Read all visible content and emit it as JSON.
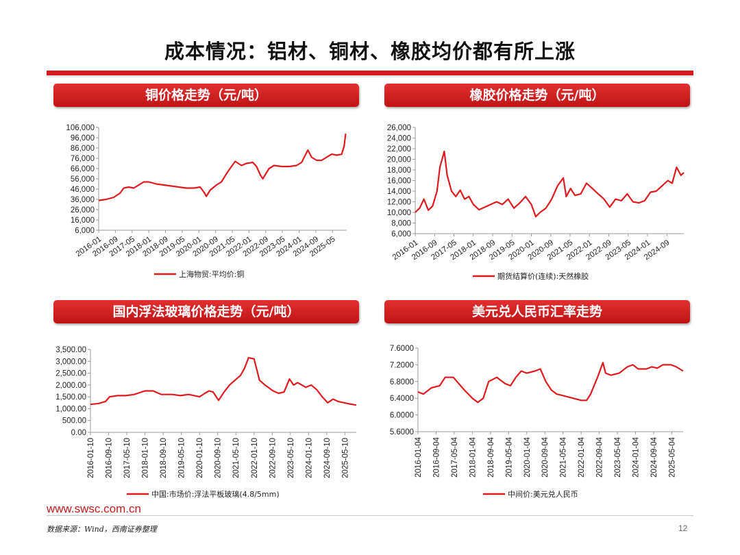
{
  "page": {
    "title": "成本情况：铝材、铜材、橡胶均价都有所上涨",
    "url": "www.swsc.com.cn",
    "source": "数据来源：Wind，西南证券整理",
    "page_number": "12"
  },
  "panels": [
    {
      "header": "铜价格走势（元/吨）"
    },
    {
      "header": "橡胶价格走势（元/吨）"
    },
    {
      "header": "国内浮法玻璃价格走势（元/吨）"
    },
    {
      "header": "美元兑人民币汇率走势"
    }
  ],
  "colors": {
    "accent": "#d41a1a",
    "line": "#e0191f"
  },
  "chart_data": [
    {
      "type": "line",
      "title": "铜价格走势（元/吨）",
      "legend": "上海物贸:平均价:铜",
      "ylim": [
        6000,
        106000
      ],
      "yticks": [
        "106,000",
        "96,000",
        "86,000",
        "76,000",
        "66,000",
        "56,000",
        "46,000",
        "36,000",
        "26,000",
        "16,000",
        "6,000"
      ],
      "ytick_values": [
        106000,
        96000,
        86000,
        76000,
        66000,
        56000,
        46000,
        36000,
        26000,
        16000,
        6000
      ],
      "xlim": [
        2016.0,
        2025.9
      ],
      "xticks": [
        "2016-01",
        "2016-09",
        "2017-05",
        "2018-01",
        "2018-09",
        "2019-05",
        "2020-01",
        "2020-09",
        "2021-05",
        "2022-01",
        "2022-09",
        "2023-05",
        "2024-01",
        "2024-09",
        "2025-05"
      ],
      "xtick_values": [
        2016.0,
        2016.667,
        2017.333,
        2018.0,
        2018.667,
        2019.333,
        2020.0,
        2020.667,
        2021.333,
        2022.0,
        2022.667,
        2023.333,
        2024.0,
        2024.667,
        2025.333
      ],
      "x": [
        2016.0,
        2016.3,
        2016.6,
        2016.85,
        2017.0,
        2017.2,
        2017.4,
        2017.6,
        2017.8,
        2018.0,
        2018.3,
        2018.6,
        2018.9,
        2019.2,
        2019.5,
        2019.8,
        2020.05,
        2020.2,
        2020.3,
        2020.45,
        2020.7,
        2020.9,
        2021.1,
        2021.3,
        2021.45,
        2021.7,
        2021.9,
        2022.15,
        2022.3,
        2022.45,
        2022.55,
        2022.8,
        2023.0,
        2023.3,
        2023.6,
        2023.9,
        2024.1,
        2024.35,
        2024.5,
        2024.7,
        2024.9,
        2025.1,
        2025.3,
        2025.5,
        2025.7,
        2025.8,
        2025.86
      ],
      "values": [
        35000,
        36000,
        38000,
        42000,
        47000,
        48000,
        47000,
        50000,
        53000,
        53000,
        51000,
        50000,
        49000,
        48000,
        47000,
        47000,
        48000,
        43000,
        39000,
        45000,
        50000,
        53000,
        61000,
        68000,
        73000,
        69000,
        71000,
        72000,
        68000,
        60000,
        56000,
        66000,
        69000,
        68000,
        68000,
        69000,
        72000,
        84000,
        77000,
        74000,
        74000,
        77000,
        80000,
        79000,
        80000,
        88000,
        100000
      ]
    },
    {
      "type": "line",
      "title": "橡胶价格走势（元/吨）",
      "legend": "期货结算价(连续):天然橡胶",
      "ylim": [
        6000,
        26000
      ],
      "yticks": [
        "26,000",
        "24,000",
        "22,000",
        "20,000",
        "18,000",
        "16,000",
        "14,000",
        "12,000",
        "10,000",
        "8,000",
        "6,000"
      ],
      "ytick_values": [
        26000,
        24000,
        22000,
        20000,
        18000,
        16000,
        14000,
        12000,
        10000,
        8000,
        6000
      ],
      "xlim": [
        2016.0,
        2025.25
      ],
      "xticks": [
        "2016-01",
        "2016-09",
        "2017-05",
        "2018-01",
        "2018-09",
        "2019-05",
        "2020-01",
        "2020-09",
        "2021-05",
        "2022-01",
        "2022-09",
        "2023-05",
        "2024-01",
        "2024-09"
      ],
      "xtick_values": [
        2016.0,
        2016.667,
        2017.333,
        2018.0,
        2018.667,
        2019.333,
        2020.0,
        2020.667,
        2021.333,
        2022.0,
        2022.667,
        2023.333,
        2024.0,
        2024.667
      ],
      "x": [
        2016.0,
        2016.15,
        2016.3,
        2016.45,
        2016.6,
        2016.75,
        2016.85,
        2017.0,
        2017.1,
        2017.25,
        2017.4,
        2017.55,
        2017.7,
        2017.85,
        2018.0,
        2018.2,
        2018.4,
        2018.6,
        2018.8,
        2019.0,
        2019.2,
        2019.4,
        2019.6,
        2019.8,
        2020.0,
        2020.15,
        2020.3,
        2020.5,
        2020.7,
        2020.9,
        2021.1,
        2021.2,
        2021.35,
        2021.5,
        2021.7,
        2021.9,
        2022.1,
        2022.3,
        2022.5,
        2022.7,
        2022.9,
        2023.1,
        2023.3,
        2023.5,
        2023.7,
        2023.9,
        2024.1,
        2024.3,
        2024.5,
        2024.7,
        2024.85,
        2025.0,
        2025.15,
        2025.25
      ],
      "values": [
        10000,
        10800,
        12500,
        10400,
        11200,
        14000,
        18500,
        21500,
        17000,
        14000,
        13000,
        14200,
        12500,
        13000,
        11500,
        10500,
        11000,
        11500,
        12000,
        11500,
        12500,
        10800,
        11800,
        13000,
        11500,
        9200,
        10000,
        10800,
        12500,
        15000,
        16500,
        13000,
        14500,
        13200,
        13500,
        15500,
        14500,
        13500,
        12500,
        11000,
        12500,
        12200,
        13500,
        12000,
        11800,
        12200,
        13800,
        14000,
        15000,
        16000,
        15500,
        18500,
        17000,
        17500
      ]
    },
    {
      "type": "line",
      "title": "国内浮法玻璃价格走势（元/吨）",
      "legend": "中国:市场价:浮法平板玻璃(4.8/5mm)",
      "ylim": [
        0,
        3500
      ],
      "yticks": [
        "3,500.00",
        "3,000.00",
        "2,500.00",
        "2,000.00",
        "1,500.00",
        "1,000.00",
        "500.00",
        "0.00"
      ],
      "ytick_values": [
        3500,
        3000,
        2500,
        2000,
        1500,
        1000,
        500,
        0
      ],
      "xlim": [
        2016.0,
        2025.75
      ],
      "xticks": [
        "2016-01-10",
        "2016-09-10",
        "2017-05-10",
        "2018-01-10",
        "2018-09-10",
        "2019-05-10",
        "2020-01-10",
        "2020-09-10",
        "2021-05-10",
        "2022-01-10",
        "2022-09-10",
        "2023-05-10",
        "2024-01-10",
        "2024-09-10",
        "2025-05-10"
      ],
      "xtick_values": [
        2016.0,
        2016.667,
        2017.333,
        2018.0,
        2018.667,
        2019.333,
        2020.0,
        2020.667,
        2021.333,
        2022.0,
        2022.667,
        2023.333,
        2024.0,
        2024.667,
        2025.333
      ],
      "x": [
        2016.0,
        2016.3,
        2016.55,
        2016.7,
        2017.0,
        2017.3,
        2017.6,
        2018.0,
        2018.3,
        2018.6,
        2019.0,
        2019.3,
        2019.6,
        2020.0,
        2020.2,
        2020.35,
        2020.5,
        2020.7,
        2020.9,
        2021.1,
        2021.3,
        2021.5,
        2021.65,
        2021.8,
        2022.0,
        2022.2,
        2022.4,
        2022.7,
        2022.9,
        2023.1,
        2023.3,
        2023.45,
        2023.6,
        2023.9,
        2024.1,
        2024.3,
        2024.5,
        2024.7,
        2024.9,
        2025.1,
        2025.3,
        2025.5,
        2025.75
      ],
      "values": [
        1180,
        1220,
        1300,
        1500,
        1550,
        1550,
        1600,
        1750,
        1750,
        1600,
        1600,
        1550,
        1600,
        1500,
        1650,
        1750,
        1700,
        1350,
        1700,
        2000,
        2200,
        2400,
        2700,
        3150,
        3100,
        2200,
        2000,
        1750,
        1650,
        1700,
        2250,
        2000,
        2100,
        1900,
        2000,
        1800,
        1500,
        1250,
        1400,
        1300,
        1250,
        1200,
        1150
      ]
    },
    {
      "type": "line",
      "title": "美元兑人民币汇率走势",
      "legend": "中间价:美元兑人民币",
      "ylim": [
        5.6,
        7.6
      ],
      "yticks": [
        "7.6000",
        "7.2000",
        "6.8000",
        "6.4000",
        "6.0000",
        "5.6000"
      ],
      "ytick_values": [
        7.6,
        7.2,
        6.8,
        6.4,
        6.0,
        5.6
      ],
      "xlim": [
        2016.0,
        2025.75
      ],
      "xticks": [
        "2016-01-04",
        "2016-09-04",
        "2017-05-04",
        "2018-01-04",
        "2018-09-04",
        "2019-05-04",
        "2020-01-04",
        "2020-09-04",
        "2021-05-04",
        "2022-01-04",
        "2022-09-04",
        "2023-05-04",
        "2024-01-04",
        "2024-09-04",
        "2025-05-04"
      ],
      "xtick_values": [
        2016.0,
        2016.667,
        2017.333,
        2018.0,
        2018.667,
        2019.333,
        2020.0,
        2020.667,
        2021.333,
        2022.0,
        2022.667,
        2023.333,
        2024.0,
        2024.667,
        2025.333
      ],
      "x": [
        2016.0,
        2016.2,
        2016.5,
        2016.8,
        2017.0,
        2017.3,
        2017.5,
        2017.7,
        2018.0,
        2018.2,
        2018.4,
        2018.6,
        2018.9,
        2019.2,
        2019.4,
        2019.6,
        2019.8,
        2020.0,
        2020.3,
        2020.5,
        2020.7,
        2020.9,
        2021.1,
        2021.4,
        2021.7,
        2022.0,
        2022.2,
        2022.35,
        2022.6,
        2022.8,
        2022.9,
        2023.1,
        2023.4,
        2023.7,
        2023.9,
        2024.1,
        2024.4,
        2024.6,
        2024.8,
        2025.0,
        2025.3,
        2025.5,
        2025.75
      ],
      "values": [
        6.55,
        6.5,
        6.65,
        6.7,
        6.9,
        6.9,
        6.75,
        6.6,
        6.4,
        6.3,
        6.4,
        6.8,
        6.9,
        6.75,
        6.7,
        6.9,
        7.05,
        7.0,
        7.05,
        7.1,
        6.8,
        6.6,
        6.5,
        6.45,
        6.4,
        6.35,
        6.35,
        6.5,
        6.9,
        7.25,
        7.0,
        6.95,
        7.0,
        7.15,
        7.2,
        7.1,
        7.1,
        7.15,
        7.12,
        7.2,
        7.2,
        7.15,
        7.05
      ]
    }
  ]
}
